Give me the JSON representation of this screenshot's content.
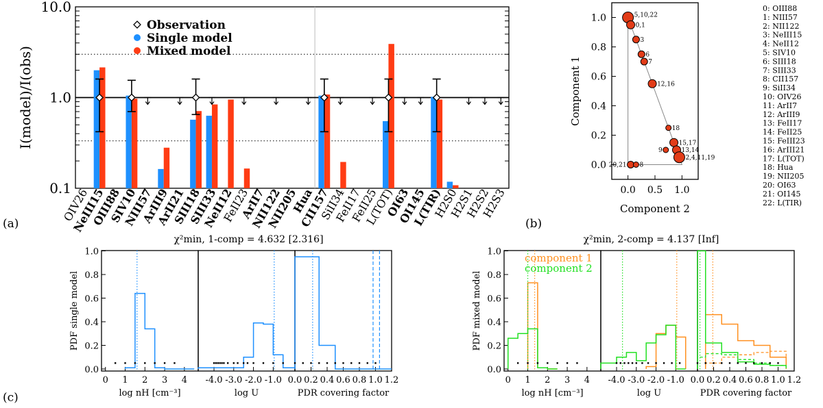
{
  "panel_labels": [
    "(a)",
    "(b)",
    "(c)"
  ],
  "colors": {
    "single": "#1e90ff",
    "mixed": "#ff3c14",
    "comp1": "#ff9020",
    "comp2": "#22e022",
    "dot": "#e23c18"
  },
  "chart_data": [
    {
      "id": "a",
      "type": "bar",
      "ylabel": "I(model)/I(obs)",
      "yscale": "log",
      "ylim": [
        0.1,
        10
      ],
      "yticks": [
        {
          "v": 0.1,
          "label": "0.1"
        },
        {
          "v": 1,
          "label": "1.0"
        },
        {
          "v": 10,
          "label": "10.0"
        }
      ],
      "ref_lines": {
        "solid": 1,
        "dotted": [
          0.333,
          3.0
        ]
      },
      "separator_index": 15,
      "legend": [
        "Observation",
        "Single model",
        "Mixed model"
      ],
      "categories": [
        "OIV26",
        "NeIII15",
        "OIII88",
        "SIV10",
        "NIII57",
        "ArIII9",
        "ArII21",
        "SIII18",
        "SIII33",
        "NeII12",
        "FeII23",
        "ArII7",
        "NII122",
        "NII205",
        "Hua",
        "CII157",
        "SiII34",
        "FeII17",
        "FeII25",
        "L(TOT)",
        "OI63",
        "OI145",
        "L(TIR)",
        "H2S0",
        "H2S1",
        "H2S2",
        "H2S3"
      ],
      "bold": [
        false,
        true,
        true,
        true,
        true,
        true,
        true,
        true,
        true,
        true,
        false,
        true,
        true,
        true,
        true,
        true,
        false,
        false,
        false,
        false,
        true,
        true,
        true,
        false,
        false,
        false,
        false
      ],
      "series": [
        {
          "name": "Single model",
          "values": [
            null,
            2.0,
            null,
            1.05,
            null,
            0.163,
            null,
            0.57,
            0.63,
            null,
            null,
            null,
            null,
            null,
            null,
            1.05,
            null,
            null,
            null,
            0.55,
            null,
            null,
            1.02,
            0.118,
            null,
            null,
            null
          ]
        },
        {
          "name": "Mixed model",
          "values": [
            null,
            2.15,
            null,
            0.97,
            null,
            0.28,
            null,
            0.71,
            0.84,
            0.95,
            0.165,
            null,
            null,
            null,
            null,
            1.08,
            0.195,
            null,
            null,
            3.9,
            null,
            null,
            0.95,
            0.108,
            null,
            null,
            null
          ]
        }
      ],
      "observations": [
        {
          "index": 1,
          "value": 1,
          "low": 0.42,
          "high": 1.6
        },
        {
          "index": 3,
          "value": 1,
          "low": 0.7,
          "high": 1.55
        },
        {
          "index": 7,
          "value": 1,
          "low": 0.65,
          "high": 1.6
        },
        {
          "index": 15,
          "value": 1,
          "low": 0.42,
          "high": 1.6
        },
        {
          "index": 19,
          "value": 1,
          "low": 0.42,
          "high": 1.6
        },
        {
          "index": 22,
          "value": 1,
          "low": 0.42,
          "high": 1.6
        }
      ],
      "upper_limits": [
        4,
        6,
        8,
        10,
        12,
        14,
        16,
        18,
        20,
        21,
        24,
        25,
        26
      ]
    },
    {
      "id": "b",
      "type": "scatter",
      "xlabel": "Component 2",
      "ylabel": "Component 1",
      "xlim": [
        -0.3,
        1.3
      ],
      "ylim": [
        -0.1,
        1.1
      ],
      "xticks": [
        0.0,
        0.5,
        1.0
      ],
      "yticks": [
        0.0,
        0.2,
        0.4,
        0.6,
        0.8,
        1.0
      ],
      "points": [
        {
          "x": 0.0,
          "y": 1.0,
          "r": 8,
          "label": "5,10,22"
        },
        {
          "x": 0.05,
          "y": 0.95,
          "r": 6,
          "label": "0,1"
        },
        {
          "x": 0.15,
          "y": 0.85,
          "r": 5,
          "label": "3"
        },
        {
          "x": 0.25,
          "y": 0.75,
          "r": 5,
          "label": "6"
        },
        {
          "x": 0.3,
          "y": 0.7,
          "r": 5,
          "label": "7"
        },
        {
          "x": 0.45,
          "y": 0.55,
          "r": 6,
          "label": "12,16"
        },
        {
          "x": 0.75,
          "y": 0.25,
          "r": 4,
          "label": "18"
        },
        {
          "x": 0.85,
          "y": 0.15,
          "r": 6,
          "label": "15,17"
        },
        {
          "x": 0.7,
          "y": 0.1,
          "r": 4,
          "label": "9"
        },
        {
          "x": 0.9,
          "y": 0.1,
          "r": 6,
          "label": "13,14"
        },
        {
          "x": 0.95,
          "y": 0.05,
          "r": 8,
          "label": "2,4,11,19"
        },
        {
          "x": 0.05,
          "y": 0.0,
          "r": 5,
          "label": "20,21"
        },
        {
          "x": 0.15,
          "y": 0.0,
          "r": 4,
          "label": "8"
        }
      ],
      "index_legend": [
        "0: OIII88",
        "1: NIII57",
        "2: NII122",
        "3: NeIII15",
        "4: NeII12",
        "5: SIV10",
        "6: SIII18",
        "7: SIII33",
        "8: CII157",
        "9: SiII34",
        "10: OIV26",
        "11:   ArII7",
        "12: ArIII9",
        "13: FeII17",
        "14: FeII25",
        "15: FeIII23",
        "16: ArIII21",
        "17: L(TOT)",
        "18:   Hua",
        "19: NII205",
        "20: OI63",
        "21: OI145",
        "22: L(TIR)"
      ]
    },
    {
      "id": "c-left",
      "type": "histogram",
      "title": "χ²min, 1-comp = 4.632 [2.316]",
      "ylabel": "PDF single model",
      "ylim": [
        0,
        1
      ],
      "subplots": [
        {
          "xlabel": "log nH [cm⁻³]",
          "xlim": [
            -0.2,
            4.7
          ],
          "xticks": [
            0,
            1,
            2,
            3,
            4
          ],
          "series": [
            {
              "name": "single",
              "edges": [
                1.0,
                1.5,
                2.0,
                2.5,
                3.0,
                4.5
              ],
              "values": [
                0.01,
                0.64,
                0.34,
                0.01,
                0.0
              ]
            }
          ],
          "vlines": [
            {
              "x": 1.6,
              "style": "dotted",
              "color": "single"
            }
          ],
          "dots": [
            0.5,
            1.0,
            1.5,
            2.0,
            2.5,
            3.0,
            3.5
          ]
        },
        {
          "xlabel": "log U",
          "xlim": [
            -4.8,
            0.1
          ],
          "xticks": [
            -4,
            -3,
            -2,
            -1
          ],
          "series": [
            {
              "name": "single",
              "edges": [
                -4.8,
                -2.5,
                -2.0,
                -1.5,
                -1.0,
                -0.5,
                0.1
              ],
              "values": [
                0.01,
                0.1,
                0.39,
                0.38,
                0.12,
                0.01
              ]
            }
          ],
          "vlines": [
            {
              "x": -0.95,
              "style": "dotted",
              "color": "single"
            }
          ],
          "dots": [
            -4.0,
            -3.9,
            -3.8,
            -3.7,
            -3.6,
            -3.5,
            -3.3,
            -3.0,
            -2.8,
            -2.5,
            -2.3,
            -2.0,
            -1.5,
            -1.0,
            -0.5
          ]
        },
        {
          "xlabel": "PDR covering factor",
          "xlim": [
            0.0,
            1.2
          ],
          "xticks": [
            0.0,
            0.2,
            0.4,
            0.6,
            0.8,
            1.0,
            1.2
          ],
          "series": [
            {
              "name": "single",
              "edges": [
                0.0,
                0.1,
                0.3,
                0.5,
                1.2
              ],
              "values": [
                0.95,
                0.95,
                0.2,
                0.0
              ]
            }
          ],
          "vlines": [
            {
              "x": 0.22,
              "style": "dotted",
              "color": "single"
            },
            {
              "x": 0.97,
              "style": "dashed",
              "color": "single"
            },
            {
              "x": 1.05,
              "style": "dashed",
              "color": "single"
            }
          ],
          "dots": [
            0.0,
            0.1,
            0.2,
            0.3,
            0.4,
            0.5,
            0.6,
            0.7,
            0.8,
            0.9,
            1.0
          ]
        }
      ]
    },
    {
      "id": "c-right",
      "type": "histogram",
      "title": "χ²min, 2-comp = 4.137 [Inf]",
      "ylabel": "PDF mixed model",
      "ylim": [
        0,
        1
      ],
      "legend": [
        "component 1",
        "component 2"
      ],
      "subplots": [
        {
          "xlabel": "log nH [cm⁻³]",
          "xlim": [
            -0.2,
            4.7
          ],
          "xticks": [
            0,
            1,
            2,
            3,
            4
          ],
          "series": [
            {
              "name": "component 1",
              "edges": [
                1.0,
                1.5,
                2.0,
                2.5
              ],
              "values": [
                0.73,
                0.01,
                0.0
              ]
            },
            {
              "name": "component 2",
              "edges": [
                0.0,
                0.5,
                1.0,
                1.5,
                2.0,
                2.5
              ],
              "values": [
                0.26,
                0.3,
                0.34,
                0.01,
                0.0
              ]
            }
          ],
          "vlines": [
            {
              "x": 1.0,
              "style": "dotted",
              "color": "comp2"
            },
            {
              "x": 1.35,
              "style": "dotted",
              "color": "comp1"
            }
          ],
          "dots": [
            0.5,
            1.0,
            1.5,
            2.0,
            2.5,
            3.0,
            3.5
          ]
        },
        {
          "xlabel": "log U",
          "xlim": [
            -4.8,
            0.1
          ],
          "xticks": [
            -4,
            -3,
            -2,
            -1
          ],
          "series": [
            {
              "name": "component 1",
              "edges": [
                -2.5,
                -2.0,
                -1.5,
                -1.0,
                -0.5
              ],
              "values": [
                0.02,
                0.3,
                0.37,
                0.27
              ]
            },
            {
              "name": "component 2",
              "edges": [
                -4.8,
                -4.0,
                -3.5,
                -3.0,
                -2.5,
                -2.0,
                -1.5,
                -1.0,
                -0.5
              ],
              "values": [
                0.05,
                0.1,
                0.14,
                0.07,
                0.22,
                0.29,
                0.37,
                0.0
              ]
            }
          ],
          "vlines": [
            {
              "x": -3.7,
              "style": "dotted",
              "color": "comp2"
            },
            {
              "x": -0.95,
              "style": "dotted",
              "color": "comp1"
            }
          ],
          "dots": [
            -4.0,
            -3.8,
            -3.6,
            -3.4,
            -3.2,
            -3.0,
            -2.7,
            -2.4,
            -2.0,
            -1.6,
            -1.2,
            -0.8
          ]
        },
        {
          "xlabel": "PDR covering factor",
          "xlim": [
            0.0,
            1.2
          ],
          "xticks": [
            0.0,
            0.2,
            0.4,
            0.6,
            0.8,
            1.0,
            1.2
          ],
          "series": [
            {
              "name": "component 1",
              "edges": [
                0.1,
                0.3,
                0.5,
                0.7,
                0.9,
                1.1
              ],
              "values": [
                0.46,
                0.38,
                0.24,
                0.2,
                0.1
              ]
            },
            {
              "name": "component 2",
              "edges": [
                0.0,
                0.1,
                0.3,
                0.5,
                0.7,
                0.9,
                1.1
              ],
              "values": [
                1.0,
                0.22,
                0.14,
                0.06,
                0.04,
                0.03
              ]
            }
          ],
          "dashed": [
            {
              "name": "component 1",
              "edges": [
                0.1,
                0.3,
                0.5,
                0.7,
                0.9,
                1.1
              ],
              "values": [
                0.05,
                0.1,
                0.12,
                0.14,
                0.15
              ]
            },
            {
              "name": "component 2",
              "edges": [
                0.0,
                0.1,
                0.3,
                0.5,
                0.7,
                0.9,
                1.1
              ],
              "values": [
                0.1,
                0.13,
                0.12,
                0.08,
                0.05,
                0.03
              ]
            }
          ],
          "vlines": [
            {
              "x": 0.03,
              "style": "dotted",
              "color": "comp2"
            },
            {
              "x": 0.19,
              "style": "dotted",
              "color": "comp1"
            }
          ],
          "dots": [
            0.0,
            0.1,
            0.2,
            0.3,
            0.4,
            0.5,
            0.6,
            0.7,
            0.8,
            0.9,
            1.0
          ]
        }
      ]
    }
  ]
}
